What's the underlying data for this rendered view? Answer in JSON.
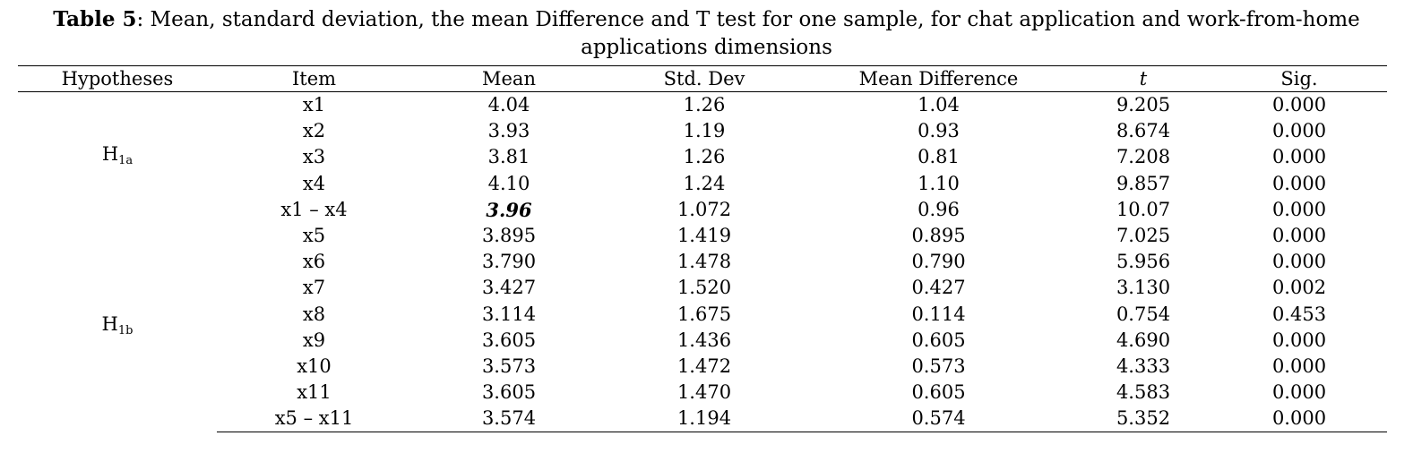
{
  "caption": {
    "label": "Table 5",
    "text": ": Mean, standard deviation, the mean Difference and T test for one sample, for chat application and work-from-home applications dimensions"
  },
  "columns": [
    "Hypotheses",
    "Item",
    "Mean",
    "Std. Dev",
    "Mean Difference",
    "t",
    "Sig."
  ],
  "groups": [
    {
      "hypothesis": {
        "base": "H",
        "sub": "1a"
      },
      "rows": [
        [
          "x1",
          "4.04",
          "1.26",
          "1.04",
          "9.205",
          "0.000"
        ],
        [
          "x2",
          "3.93",
          "1.19",
          "0.93",
          "8.674",
          "0.000"
        ],
        [
          "x3",
          "3.81",
          "1.26",
          "0.81",
          "7.208",
          "0.000"
        ],
        [
          "x4",
          "4.10",
          "1.24",
          "1.10",
          "9.857",
          "0.000"
        ],
        [
          "x1 – x4",
          "3.96",
          "1.072",
          "0.96",
          "10.07",
          "0.000"
        ]
      ]
    },
    {
      "hypothesis": {
        "base": "H",
        "sub": "1b"
      },
      "rows": [
        [
          "x5",
          "3.895",
          "1.419",
          "0.895",
          "7.025",
          "0.000"
        ],
        [
          "x6",
          "3.790",
          "1.478",
          "0.790",
          "5.956",
          "0.000"
        ],
        [
          "x7",
          "3.427",
          "1.520",
          "0.427",
          "3.130",
          "0.002"
        ],
        [
          "x8",
          "3.114",
          "1.675",
          "0.114",
          "0.754",
          "0.453"
        ],
        [
          "x9",
          "3.605",
          "1.436",
          "0.605",
          "4.690",
          "0.000"
        ],
        [
          "x10",
          "3.573",
          "1.472",
          "0.573",
          "4.333",
          "0.000"
        ],
        [
          "x11",
          "3.605",
          "1.470",
          "0.605",
          "4.583",
          "0.000"
        ],
        [
          "x5 – x11",
          "3.574",
          "1.194",
          "0.574",
          "5.352",
          "0.000"
        ]
      ]
    }
  ]
}
